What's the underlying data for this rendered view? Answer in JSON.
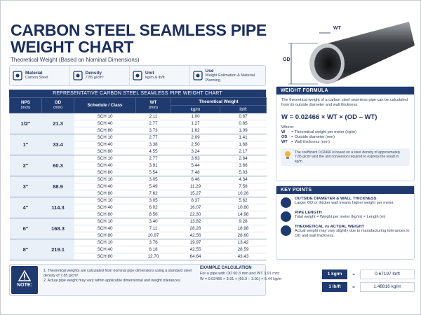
{
  "header": {
    "title_line1": "CARBON STEEL SEAMLESS PIPE",
    "title_line2": "WEIGHT CHART",
    "subtitle": "Theoretical Weight (Based on Nominal Dimensions)"
  },
  "specs": [
    {
      "label": "Material",
      "value": "Carbon Steel"
    },
    {
      "label": "Density",
      "value": "7.85 g/cm³"
    },
    {
      "label": "Unit",
      "value": "kg/m & lb/ft"
    },
    {
      "label": "Use",
      "value": "Weight Estimation & Material Planning"
    }
  ],
  "diagram": {
    "wt_label": "WT",
    "od_label": "OD"
  },
  "table": {
    "title": "REPRESENTATIVE CARBON STEEL SEAMLESS PIPE WEIGHT CHART",
    "headers": {
      "nps": "NPS",
      "nps_unit": "(inch)",
      "od": "OD",
      "od_unit": "(mm)",
      "schedule": "Schedule / Class",
      "wt": "WT",
      "wt_unit": "(mm)",
      "weight": "Theoretical Weight",
      "kgm": "kg/m",
      "lbft": "lb/ft"
    },
    "groups": [
      {
        "nps": "1/2\"",
        "od": "21.3",
        "rows": [
          [
            "SCH 10",
            "2.11",
            "1.00",
            "0.67"
          ],
          [
            "SCH 40",
            "2.77",
            "1.27",
            "0.85"
          ],
          [
            "SCH 80",
            "3.73",
            "1.62",
            "1.09"
          ]
        ]
      },
      {
        "nps": "1\"",
        "od": "33.4",
        "rows": [
          [
            "SCH 10",
            "2.77",
            "2.09",
            "1.41"
          ],
          [
            "SCH 40",
            "3.38",
            "2.50",
            "1.68"
          ],
          [
            "SCH 80",
            "4.55",
            "3.24",
            "2.17"
          ]
        ]
      },
      {
        "nps": "2\"",
        "od": "60.3",
        "rows": [
          [
            "SCH 10",
            "2.77",
            "3.93",
            "2.64"
          ],
          [
            "SCH 40",
            "3.91",
            "5.44",
            "3.66"
          ],
          [
            "SCH 80",
            "5.54",
            "7.48",
            "5.03"
          ]
        ]
      },
      {
        "nps": "3\"",
        "od": "88.9",
        "rows": [
          [
            "SCH 10",
            "3.05",
            "6.46",
            "4.34"
          ],
          [
            "SCH 40",
            "5.49",
            "11.29",
            "7.58"
          ],
          [
            "SCH 80",
            "7.62",
            "15.27",
            "10.26"
          ]
        ]
      },
      {
        "nps": "4\"",
        "od": "114.3",
        "rows": [
          [
            "SCH 10",
            "3.05",
            "8.37",
            "5.62"
          ],
          [
            "SCH 40",
            "6.02",
            "16.07",
            "10.80"
          ],
          [
            "SCH 80",
            "8.56",
            "22.30",
            "14.98"
          ]
        ]
      },
      {
        "nps": "6\"",
        "od": "168.3",
        "rows": [
          [
            "SCH 10",
            "3.40",
            "13.82",
            "9.28"
          ],
          [
            "SCH 40",
            "7.11",
            "28.26",
            "18.98"
          ],
          [
            "SCH 80",
            "10.97",
            "42.56",
            "28.60"
          ]
        ]
      },
      {
        "nps": "8\"",
        "od": "219.1",
        "rows": [
          [
            "SCH 10",
            "3.76",
            "19.97",
            "13.42"
          ],
          [
            "SCH 40",
            "8.18",
            "42.55",
            "28.59"
          ],
          [
            "SCH 80",
            "12.70",
            "64.64",
            "43.43"
          ]
        ]
      }
    ]
  },
  "formula": {
    "title": "WEIGHT FORMULA",
    "intro": "The theoretical weight of a carbon steel seamless pipe can be calculated from its outside diameter and wall thickness:",
    "equation": "W = 0.02466 × WT × (OD – WT)",
    "where": "Where:",
    "definitions": [
      {
        "symbol": "W",
        "text": "= Theoretical weight per meter (kg/m)"
      },
      {
        "symbol": "OD",
        "text": "= Outside diameter (mm)"
      },
      {
        "symbol": "WT",
        "text": "= Wall thickness (mm)"
      }
    ],
    "note": "The coefficient 0.02466 is based on a steel density of approximately 7.85 g/cm³ and the unit conversion required to express the result in kg/m."
  },
  "key_points": {
    "title": "KEY POINTS",
    "items": [
      {
        "heading": "OUTSIDE DIAMETER & WALL THICKNESS",
        "text": "Larger OD or thicker wall means higher weight per meter."
      },
      {
        "heading": "PIPE LENGTH",
        "text": "Total weight = Weight per meter (kg/m) × Length (m)"
      },
      {
        "heading": "THEORETICAL vs ACTUAL WEIGHT",
        "text": "Actual weight may vary slightly due to manufacturing tolerances in OD and wall thickness."
      }
    ]
  },
  "footer": {
    "note_label": "NOTE:",
    "notes": [
      "1. Theoretical weights are calculated from nominal pipe dimensions using a standard steel density of 7.85 g/cm³.",
      "2. Actual pipe weight may vary within applicable dimensional and weight tolerances."
    ],
    "example_title": "EXAMPLE CALCULATION",
    "example_intro": "For a pipe with OD 60.3 mm and WT 3.91 mm:",
    "example_equation": "W = 0.02466 × 3.91 × (60.3 – 3.91) = 5.44 kg/m"
  },
  "conversions": [
    {
      "from": "1 kg/m",
      "eq": "=",
      "to": "0.67197 lb/ft"
    },
    {
      "from": "1 lb/ft",
      "eq": "=",
      "to": "1.48816 kg/m"
    }
  ]
}
